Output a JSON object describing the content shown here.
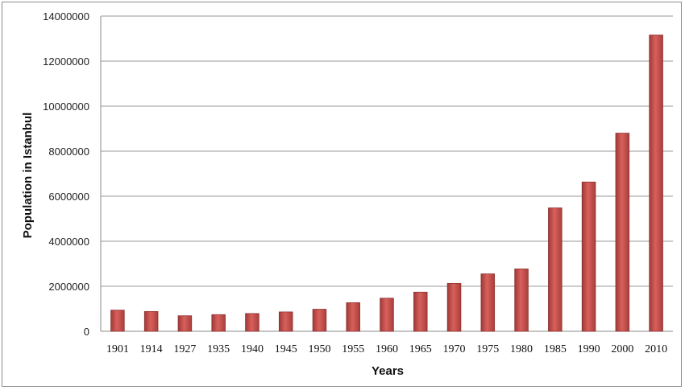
{
  "chart_data": {
    "type": "bar",
    "title": "",
    "xlabel": "Years",
    "ylabel": "Population in Istanbul",
    "categories": [
      "1901",
      "1914",
      "1927",
      "1935",
      "1940",
      "1945",
      "1950",
      "1955",
      "1960",
      "1965",
      "1970",
      "1975",
      "1980",
      "1985",
      "1990",
      "2000",
      "2010"
    ],
    "values": [
      940000,
      880000,
      690000,
      740000,
      790000,
      860000,
      980000,
      1270000,
      1470000,
      1740000,
      2130000,
      2550000,
      2770000,
      5480000,
      6630000,
      8800000,
      13160000
    ],
    "yticks": [
      "0",
      "2000000",
      "4000000",
      "6000000",
      "8000000",
      "10000000",
      "12000000",
      "14000000"
    ],
    "ylim": [
      0,
      14000000
    ],
    "grid": true,
    "legend": "none",
    "bar_color": "#c0504d"
  }
}
